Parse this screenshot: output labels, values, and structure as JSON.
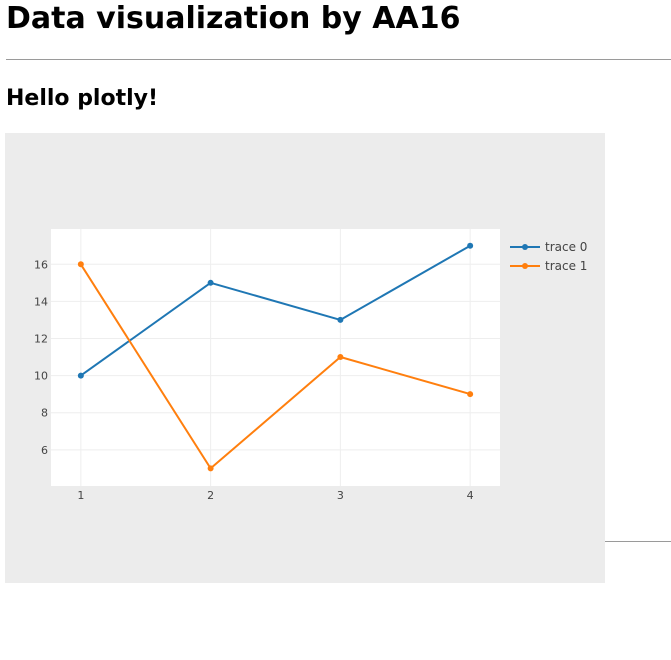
{
  "page": {
    "title": "Data visualization by AA16",
    "section_title": "Hello plotly!"
  },
  "chart_data": {
    "type": "line",
    "title": "",
    "xlabel": "",
    "ylabel": "",
    "x": [
      1,
      2,
      3,
      4
    ],
    "xlim": [
      0.77,
      4.23
    ],
    "ylim": [
      4.05,
      17.9
    ],
    "xticks": [
      1,
      2,
      3,
      4
    ],
    "yticks": [
      6,
      8,
      10,
      12,
      14,
      16
    ],
    "grid": true,
    "legend_position": "top-right",
    "plot_background": "#ffffff",
    "paper_background": "#ececec",
    "grid_color": "#eeeeee",
    "series": [
      {
        "name": "trace 0",
        "color": "#1f77b4",
        "values": [
          10,
          15,
          13,
          17
        ]
      },
      {
        "name": "trace 1",
        "color": "#ff7f0e",
        "values": [
          16,
          5,
          11,
          9
        ]
      }
    ]
  }
}
